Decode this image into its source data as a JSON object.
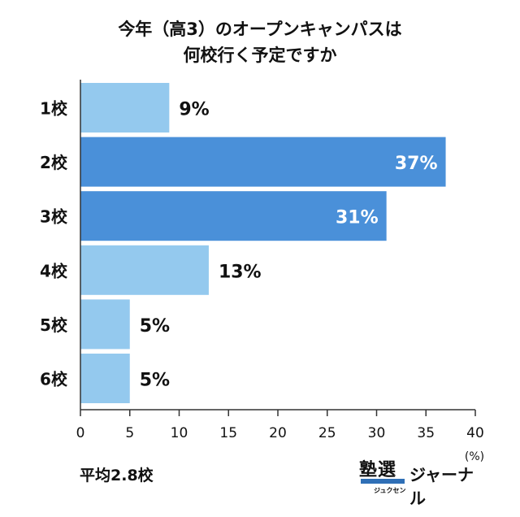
{
  "title_line1": "今年（高3）のオープンキャンパスは",
  "title_line2": "何校行く予定ですか",
  "average_label": "平均2.8校",
  "logo": {
    "kanji": "塾選",
    "kana": "ジュクセン",
    "name": "ジャーナル"
  },
  "colors": {
    "light": "#94c9ee",
    "dark": "#4a90d9",
    "axis": "#333333"
  },
  "chart_data": {
    "type": "bar",
    "orientation": "horizontal",
    "categories": [
      "1校",
      "2校",
      "3校",
      "4校",
      "5校",
      "6校"
    ],
    "values": [
      9,
      37,
      31,
      13,
      5,
      5
    ],
    "value_labels": [
      "9%",
      "37%",
      "31%",
      "13%",
      "5%",
      "5%"
    ],
    "highlight": [
      false,
      true,
      true,
      false,
      false,
      false
    ],
    "xlim": [
      0,
      40
    ],
    "xticks": [
      0,
      5,
      10,
      15,
      20,
      25,
      30,
      35,
      40
    ],
    "xunit": "(%)",
    "grid": false,
    "legend": "none"
  }
}
